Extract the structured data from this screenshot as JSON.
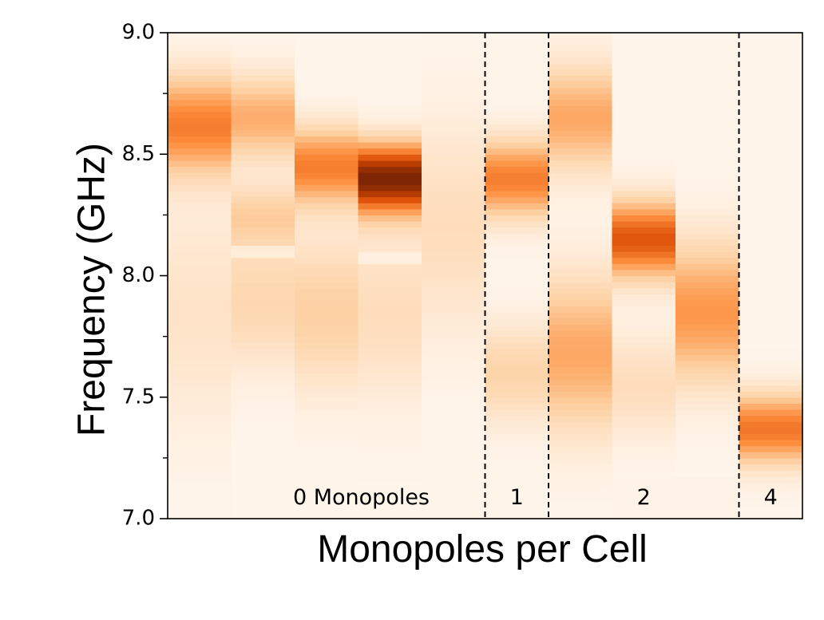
{
  "chart_data": {
    "type": "heatmap",
    "title": "",
    "xlabel": "Monopoles per Cell",
    "ylabel": "Frequency (GHz)",
    "ylim": [
      7.0,
      9.0
    ],
    "yticks": [
      "7.0",
      "7.5",
      "8.0",
      "8.5",
      "9.0"
    ],
    "yticks_values": [
      7.0,
      7.5,
      8.0,
      8.5,
      9.0
    ],
    "yminor_ticks": [
      7.25,
      7.75,
      8.25,
      8.75
    ],
    "colormap": [
      "#fff5eb",
      "#fdd0a2",
      "#fd8d3c",
      "#d94801",
      "#7f2704"
    ],
    "groups": [
      {
        "label": "0 Monopoles",
        "start_column": 0,
        "end_column": 4
      },
      {
        "label": "1",
        "start_column": 5,
        "end_column": 5
      },
      {
        "label": "2",
        "start_column": 6,
        "end_column": 8
      },
      {
        "label": "4",
        "start_column": 9,
        "end_column": 9
      }
    ],
    "group_boundaries_after_column": [
      4,
      5,
      8
    ],
    "columns": [
      {
        "monopoles": 0,
        "peaks": [
          {
            "freq": 8.62,
            "width": 0.14,
            "amp": 0.55
          },
          {
            "freq": 7.85,
            "width": 0.32,
            "amp": 0.12
          }
        ],
        "cutoff_low": 7.0
      },
      {
        "monopoles": 0,
        "peaks": [
          {
            "freq": 8.65,
            "width": 0.12,
            "amp": 0.38
          },
          {
            "freq": 8.25,
            "width": 0.09,
            "amp": 0.22
          },
          {
            "freq": 7.9,
            "width": 0.2,
            "amp": 0.2
          }
        ],
        "cutoff_low": 7.0,
        "notch": 8.1
      },
      {
        "monopoles": 0,
        "peaks": [
          {
            "freq": 8.45,
            "width": 0.11,
            "amp": 0.55
          },
          {
            "freq": 7.85,
            "width": 0.22,
            "amp": 0.24
          }
        ],
        "cutoff_low": 7.0
      },
      {
        "monopoles": 0,
        "peaks": [
          {
            "freq": 8.4,
            "width": 0.1,
            "amp": 1.0
          },
          {
            "freq": 7.85,
            "width": 0.25,
            "amp": 0.16
          }
        ],
        "cutoff_low": 7.0,
        "notch": 8.08
      },
      {
        "monopoles": 0,
        "peaks": [
          {
            "freq": 8.2,
            "width": 0.3,
            "amp": 0.16
          }
        ],
        "cutoff_low": 7.0
      },
      {
        "monopoles": 1,
        "peaks": [
          {
            "freq": 8.4,
            "width": 0.11,
            "amp": 0.55
          },
          {
            "freq": 7.6,
            "width": 0.14,
            "amp": 0.22
          }
        ],
        "cutoff_low": 7.0
      },
      {
        "monopoles": 2,
        "peaks": [
          {
            "freq": 8.65,
            "width": 0.15,
            "amp": 0.4
          },
          {
            "freq": 7.68,
            "width": 0.22,
            "amp": 0.4
          }
        ],
        "cutoff_low": 7.0
      },
      {
        "monopoles": 2,
        "peaks": [
          {
            "freq": 8.15,
            "width": 0.11,
            "amp": 0.7
          },
          {
            "freq": 7.55,
            "width": 0.15,
            "amp": 0.16
          }
        ],
        "cutoff_low": 7.17
      },
      {
        "monopoles": 2,
        "peaks": [
          {
            "freq": 7.85,
            "width": 0.2,
            "amp": 0.46
          }
        ],
        "cutoff_low": 7.17
      },
      {
        "monopoles": 4,
        "peaks": [
          {
            "freq": 7.37,
            "width": 0.1,
            "amp": 0.58
          }
        ],
        "cutoff_low": 7.0
      }
    ]
  }
}
